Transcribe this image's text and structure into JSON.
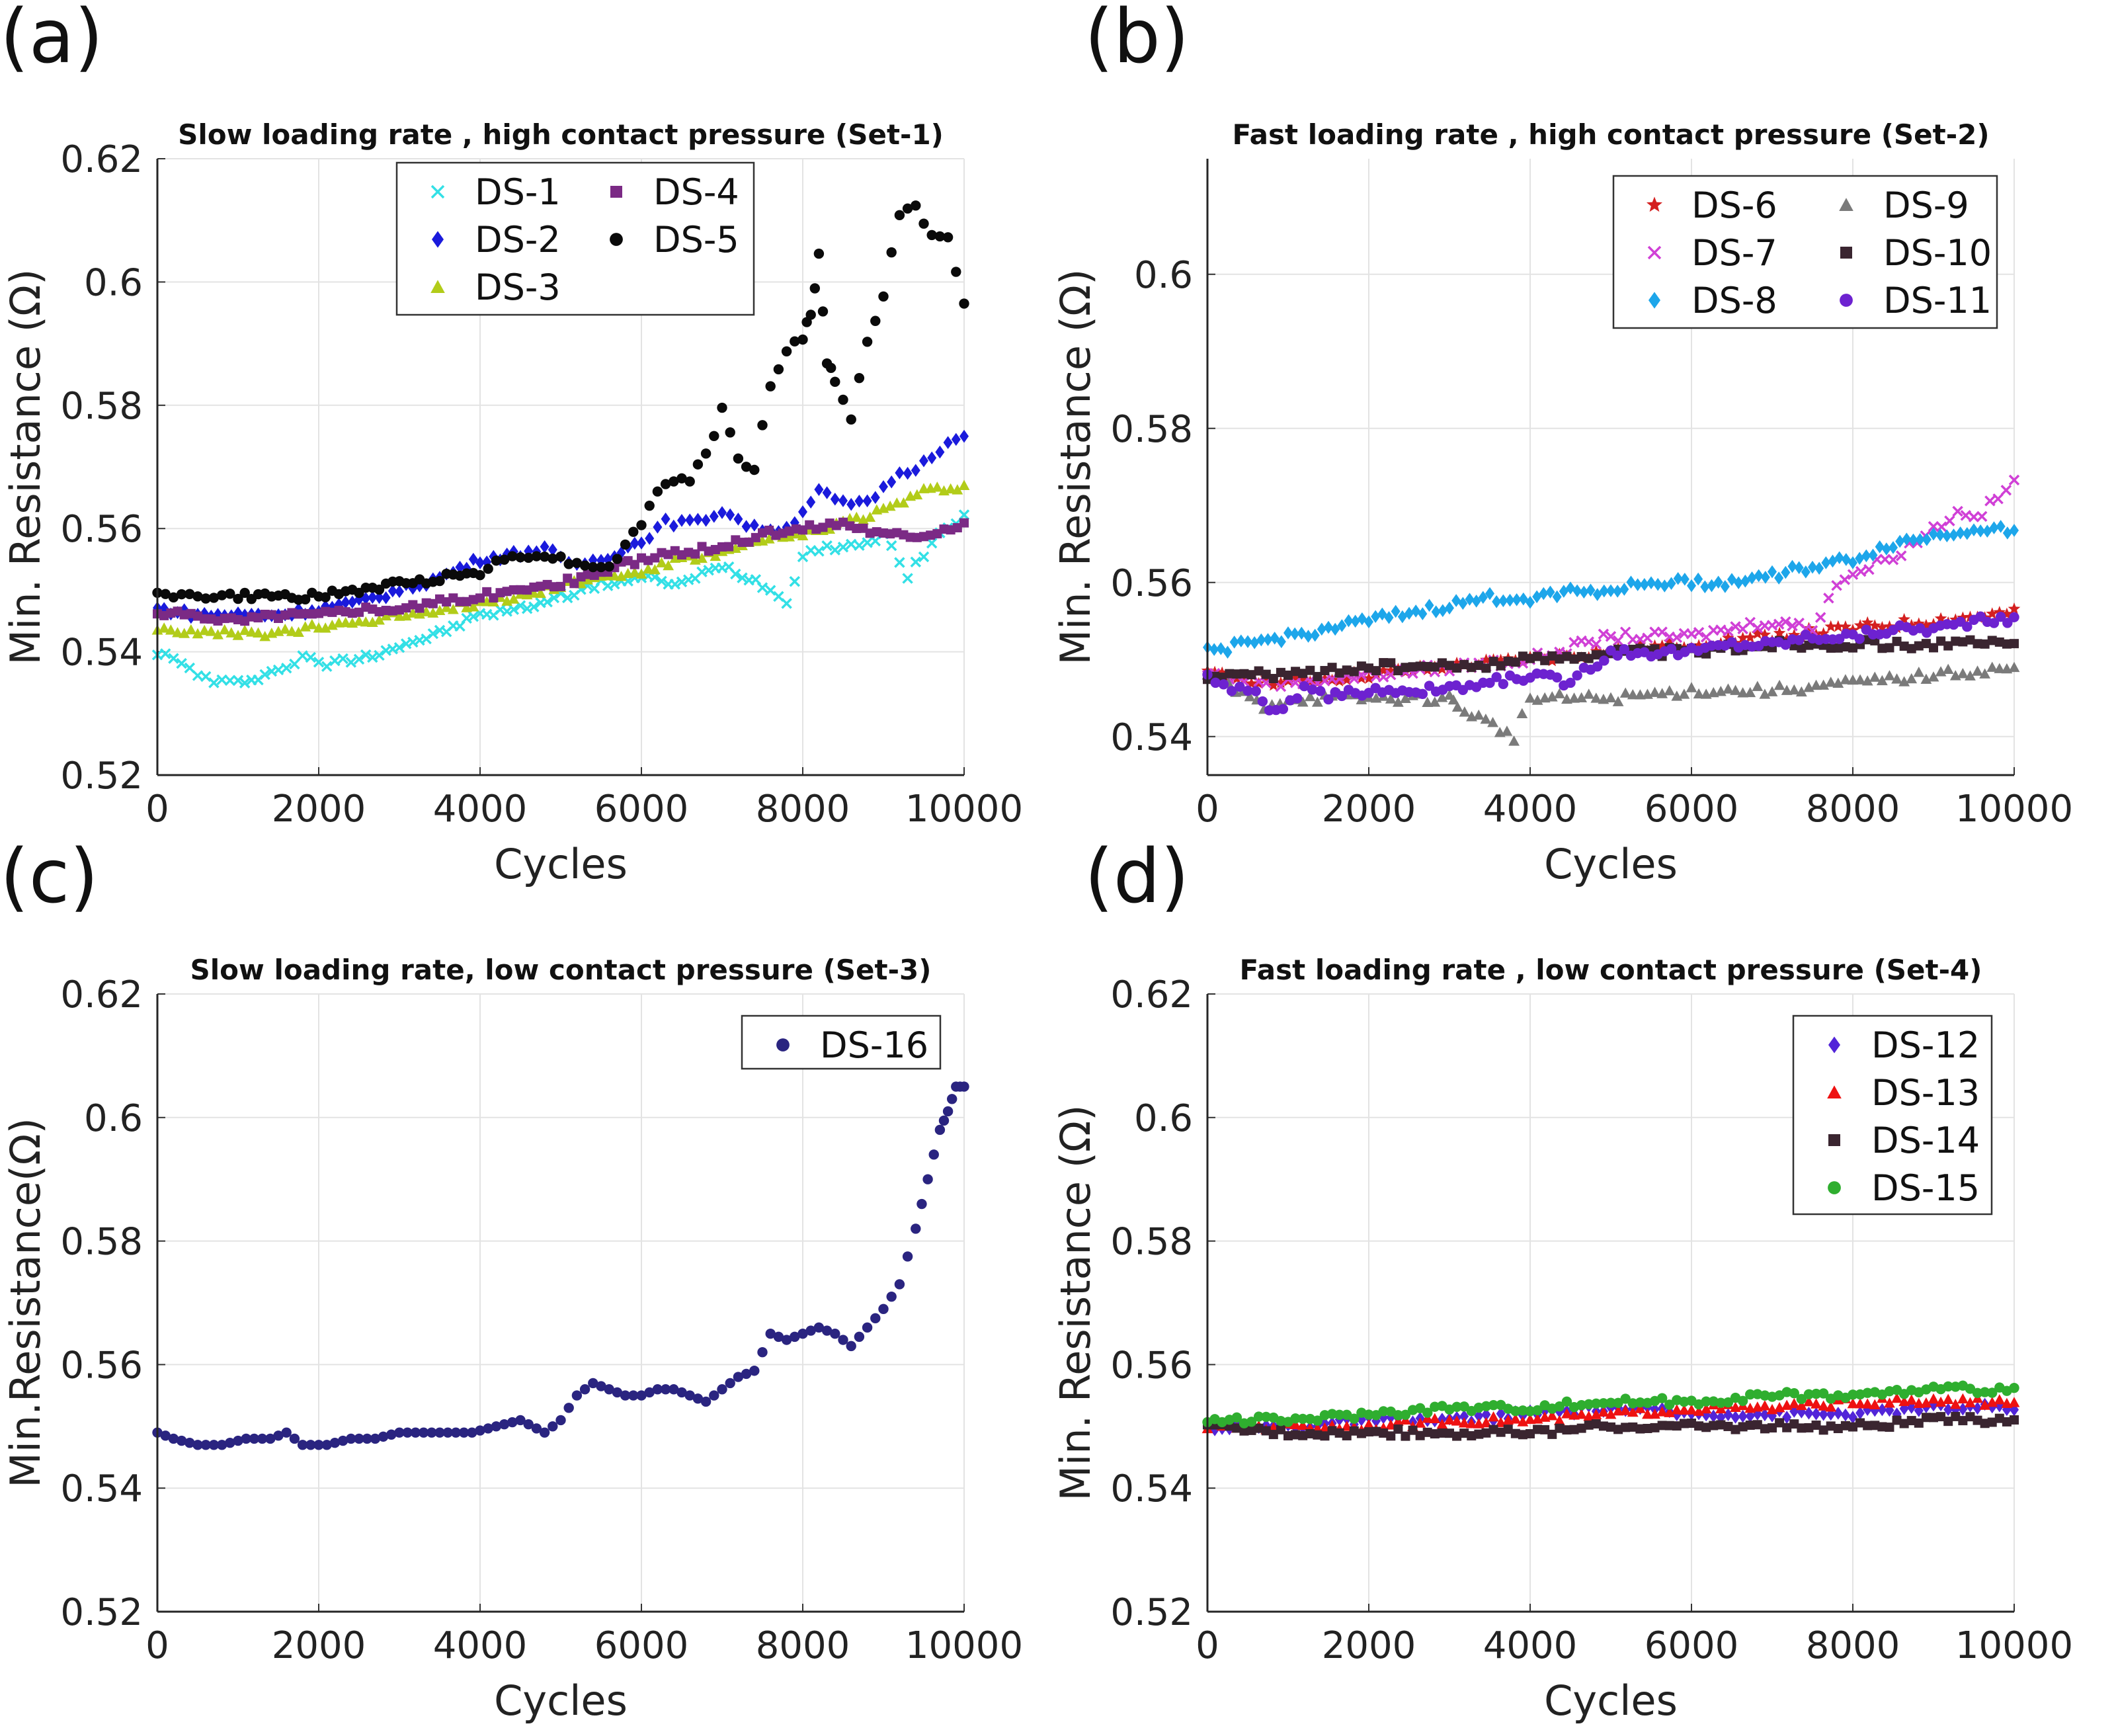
{
  "panels": [
    {
      "letter": "(a)"
    },
    {
      "letter": "(b)"
    },
    {
      "letter": "(c)"
    },
    {
      "letter": "(d)"
    }
  ],
  "chart_data": [
    {
      "id": "a",
      "type": "scatter",
      "title": "Slow loading rate , high contact pressure (Set-1)",
      "xlabel": "Cycles",
      "ylabel": "Min. Resistance (Ω)",
      "xlim": [
        0,
        10000
      ],
      "ylim": [
        0.52,
        0.62
      ],
      "xticks": [
        "0",
        "2000",
        "4000",
        "6000",
        "8000",
        "10000"
      ],
      "yticks": [
        "0.52",
        "0.54",
        "0.56",
        "0.58",
        "0.6",
        "0.62"
      ],
      "grid": true,
      "legend_columns": 2,
      "legend_placement": "top-center",
      "series": [
        {
          "name": "DS-1",
          "color": "#33e0e6",
          "marker": "x",
          "x": [
            0,
            300,
            700,
            1000,
            1500,
            1800,
            2100,
            2500,
            3000,
            3500,
            4000,
            4500,
            5000,
            5500,
            6000,
            6500,
            7000,
            7500,
            7800,
            8000,
            8300,
            8600,
            9000,
            9300,
            9600,
            10000
          ],
          "y": [
            0.54,
            0.538,
            0.535,
            0.535,
            0.537,
            0.539,
            0.538,
            0.539,
            0.541,
            0.543,
            0.546,
            0.547,
            0.549,
            0.551,
            0.552,
            0.551,
            0.554,
            0.551,
            0.548,
            0.556,
            0.557,
            0.557,
            0.559,
            0.552,
            0.558,
            0.562
          ]
        },
        {
          "name": "DS-2",
          "color": "#1a1adc",
          "marker": "diamond",
          "x": [
            0,
            500,
            1000,
            1500,
            2000,
            2500,
            3000,
            3500,
            4000,
            4500,
            4800,
            5100,
            5500,
            6000,
            6300,
            6700,
            7000,
            7400,
            7800,
            8200,
            8500,
            8800,
            9100,
            9400,
            9700,
            10000
          ],
          "y": [
            0.547,
            0.546,
            0.546,
            0.546,
            0.547,
            0.548,
            0.55,
            0.552,
            0.555,
            0.556,
            0.557,
            0.554,
            0.555,
            0.558,
            0.561,
            0.561,
            0.563,
            0.56,
            0.56,
            0.566,
            0.564,
            0.564,
            0.568,
            0.57,
            0.573,
            0.575
          ]
        },
        {
          "name": "DS-3",
          "color": "#b2cc19",
          "marker": "triangle",
          "x": [
            0,
            500,
            1000,
            1500,
            2000,
            2500,
            3000,
            3500,
            4000,
            4500,
            5000,
            5500,
            6000,
            6500,
            7000,
            7500,
            8000,
            8500,
            9000,
            9500,
            10000
          ],
          "y": [
            0.544,
            0.543,
            0.543,
            0.543,
            0.544,
            0.545,
            0.546,
            0.547,
            0.548,
            0.549,
            0.551,
            0.552,
            0.553,
            0.555,
            0.556,
            0.558,
            0.559,
            0.561,
            0.563,
            0.566,
            0.567
          ]
        },
        {
          "name": "DS-4",
          "color": "#7b2a85",
          "marker": "square",
          "x": [
            0,
            500,
            1000,
            1500,
            2000,
            2500,
            3000,
            3500,
            4000,
            4500,
            5000,
            5500,
            6000,
            6500,
            7000,
            7500,
            8000,
            8500,
            9000,
            9500,
            10000
          ],
          "y": [
            0.546,
            0.546,
            0.545,
            0.546,
            0.546,
            0.547,
            0.547,
            0.548,
            0.549,
            0.55,
            0.551,
            0.553,
            0.555,
            0.556,
            0.557,
            0.559,
            0.56,
            0.561,
            0.559,
            0.559,
            0.561
          ]
        },
        {
          "name": "DS-5",
          "color": "#0a0a0a",
          "marker": "circle",
          "x": [
            0,
            300,
            700,
            1000,
            1500,
            2000,
            2500,
            3000,
            3500,
            4000,
            4300,
            4700,
            5000,
            5300,
            5600,
            5800,
            6000,
            6200,
            6400,
            6600,
            6800,
            7000,
            7200,
            7400,
            7600,
            7800,
            8000,
            8100,
            8200,
            8300,
            8400,
            8600,
            8800,
            9000,
            9200,
            9400,
            9600,
            9800,
            10000
          ],
          "y": [
            0.55,
            0.549,
            0.549,
            0.549,
            0.549,
            0.549,
            0.55,
            0.551,
            0.552,
            0.553,
            0.555,
            0.556,
            0.555,
            0.554,
            0.554,
            0.557,
            0.561,
            0.566,
            0.568,
            0.568,
            0.572,
            0.579,
            0.571,
            0.57,
            0.583,
            0.589,
            0.591,
            0.595,
            0.604,
            0.587,
            0.584,
            0.578,
            0.59,
            0.598,
            0.611,
            0.612,
            0.608,
            0.607,
            0.596
          ]
        }
      ]
    },
    {
      "id": "b",
      "type": "scatter",
      "title": "Fast loading rate , high contact pressure (Set-2)",
      "xlabel": "Cycles",
      "ylabel": "Min. Resistance (Ω)",
      "xlim": [
        0,
        10000
      ],
      "ylim": [
        0.535,
        0.615
      ],
      "xticks": [
        "0",
        "2000",
        "4000",
        "6000",
        "8000",
        "10000"
      ],
      "yticks": [
        "0.54",
        "0.56",
        "0.58",
        "0.6"
      ],
      "grid": true,
      "legend_columns": 2,
      "legend_placement": "top-right",
      "series": [
        {
          "name": "DS-6",
          "color": "#d42020",
          "marker": "star",
          "x": [
            0,
            1000,
            2000,
            3000,
            4000,
            5000,
            6000,
            7000,
            8000,
            9000,
            10000
          ],
          "y": [
            0.548,
            0.547,
            0.548,
            0.549,
            0.55,
            0.551,
            0.552,
            0.553,
            0.554,
            0.555,
            0.556
          ]
        },
        {
          "name": "DS-7",
          "color": "#d040d6",
          "marker": "x",
          "x": [
            0,
            1000,
            2000,
            3000,
            4000,
            5000,
            6000,
            7000,
            7500,
            7800,
            8200,
            8600,
            9000,
            9300,
            9600,
            10000
          ],
          "y": [
            0.548,
            0.547,
            0.548,
            0.549,
            0.55,
            0.553,
            0.553,
            0.555,
            0.554,
            0.56,
            0.562,
            0.564,
            0.567,
            0.569,
            0.569,
            0.573
          ]
        },
        {
          "name": "DS-8",
          "color": "#1da6ea",
          "marker": "diamond",
          "x": [
            0,
            500,
            1000,
            1500,
            2000,
            2500,
            3000,
            3500,
            4000,
            4500,
            5000,
            5500,
            6000,
            6500,
            7000,
            7500,
            8000,
            8500,
            9000,
            9500,
            10000
          ],
          "y": [
            0.551,
            0.552,
            0.553,
            0.554,
            0.555,
            0.556,
            0.557,
            0.558,
            0.558,
            0.559,
            0.559,
            0.56,
            0.56,
            0.56,
            0.561,
            0.562,
            0.563,
            0.565,
            0.566,
            0.567,
            0.567
          ]
        },
        {
          "name": "DS-9",
          "color": "#7a7a7a",
          "marker": "triangle",
          "x": [
            0,
            700,
            1000,
            2000,
            3000,
            3100,
            3800,
            4000,
            5000,
            6000,
            7000,
            8000,
            9000,
            10000
          ],
          "y": [
            0.548,
            0.544,
            0.545,
            0.545,
            0.545,
            0.544,
            0.54,
            0.545,
            0.545,
            0.546,
            0.546,
            0.547,
            0.548,
            0.549
          ]
        },
        {
          "name": "DS-10",
          "color": "#3a2530",
          "marker": "square",
          "x": [
            0,
            1000,
            2000,
            3000,
            4000,
            5000,
            6000,
            7000,
            8000,
            9000,
            10000
          ],
          "y": [
            0.548,
            0.548,
            0.549,
            0.549,
            0.55,
            0.551,
            0.551,
            0.552,
            0.552,
            0.552,
            0.552
          ]
        },
        {
          "name": "DS-11",
          "color": "#6d22d0",
          "marker": "circle",
          "x": [
            0,
            300,
            600,
            850,
            1200,
            1500,
            2000,
            2500,
            3000,
            3500,
            4000,
            4500,
            5000,
            5500,
            6000,
            6500,
            7000,
            7500,
            8000,
            8500,
            9000,
            9500,
            10000
          ],
          "y": [
            0.548,
            0.546,
            0.546,
            0.543,
            0.546,
            0.545,
            0.546,
            0.546,
            0.546,
            0.547,
            0.548,
            0.547,
            0.551,
            0.551,
            0.551,
            0.552,
            0.552,
            0.553,
            0.553,
            0.554,
            0.554,
            0.555,
            0.555
          ]
        }
      ]
    },
    {
      "id": "c",
      "type": "scatter",
      "title": "Slow loading rate, low contact pressure (Set-3)",
      "xlabel": "Cycles",
      "ylabel": "Min.Resistance(Ω)",
      "xlim": [
        0,
        10000
      ],
      "ylim": [
        0.52,
        0.62
      ],
      "xticks": [
        "0",
        "2000",
        "4000",
        "6000",
        "8000",
        "10000"
      ],
      "yticks": [
        "0.52",
        "0.54",
        "0.56",
        "0.58",
        "0.6",
        "0.62"
      ],
      "grid": true,
      "legend_columns": 1,
      "legend_placement": "top-right",
      "series": [
        {
          "name": "DS-16",
          "color": "#2a2480",
          "marker": "circle",
          "x": [
            0,
            200,
            500,
            800,
            1100,
            1400,
            1600,
            1800,
            2100,
            2400,
            2700,
            3000,
            3300,
            3600,
            3900,
            4200,
            4500,
            4800,
            5000,
            5200,
            5400,
            5600,
            5800,
            6000,
            6200,
            6400,
            6600,
            6800,
            7000,
            7200,
            7400,
            7600,
            7800,
            8000,
            8200,
            8400,
            8600,
            8800,
            9000,
            9200,
            9400,
            9550,
            9700,
            9800,
            9900,
            10000
          ],
          "y": [
            0.549,
            0.548,
            0.547,
            0.547,
            0.548,
            0.548,
            0.549,
            0.547,
            0.547,
            0.548,
            0.548,
            0.549,
            0.549,
            0.549,
            0.549,
            0.55,
            0.551,
            0.549,
            0.551,
            0.555,
            0.557,
            0.556,
            0.555,
            0.555,
            0.556,
            0.556,
            0.555,
            0.554,
            0.556,
            0.558,
            0.559,
            0.565,
            0.564,
            0.565,
            0.566,
            0.565,
            0.563,
            0.566,
            0.569,
            0.573,
            0.582,
            0.59,
            0.598,
            0.601,
            0.605,
            0.605
          ]
        }
      ]
    },
    {
      "id": "d",
      "type": "scatter",
      "title": "Fast loading rate , low contact pressure (Set-4)",
      "xlabel": "Cycles",
      "ylabel": "Min. Resistance (Ω)",
      "xlim": [
        0,
        10000
      ],
      "ylim": [
        0.52,
        0.62
      ],
      "xticks": [
        "0",
        "2000",
        "4000",
        "6000",
        "8000",
        "10000"
      ],
      "yticks": [
        "0.52",
        "0.54",
        "0.56",
        "0.58",
        "0.6",
        "0.62"
      ],
      "grid": true,
      "legend_columns": 1,
      "legend_placement": "top-right",
      "series": [
        {
          "name": "DS-12",
          "color": "#5225d8",
          "marker": "diamond",
          "x": [
            0,
            1000,
            2000,
            3000,
            4000,
            5000,
            6000,
            7000,
            8000,
            9000,
            10000
          ],
          "y": [
            0.55,
            0.55,
            0.551,
            0.551,
            0.552,
            0.553,
            0.552,
            0.552,
            0.552,
            0.553,
            0.553
          ]
        },
        {
          "name": "DS-13",
          "color": "#ee1111",
          "marker": "triangle",
          "x": [
            0,
            1000,
            2000,
            3000,
            4000,
            5000,
            6000,
            7000,
            8000,
            9000,
            10000
          ],
          "y": [
            0.55,
            0.55,
            0.55,
            0.551,
            0.551,
            0.552,
            0.553,
            0.553,
            0.554,
            0.554,
            0.554
          ]
        },
        {
          "name": "DS-14",
          "color": "#3a2530",
          "marker": "square",
          "x": [
            0,
            1000,
            2000,
            3000,
            4000,
            5000,
            6000,
            7000,
            8000,
            9000,
            10000
          ],
          "y": [
            0.55,
            0.549,
            0.549,
            0.549,
            0.549,
            0.55,
            0.55,
            0.55,
            0.55,
            0.551,
            0.551
          ]
        },
        {
          "name": "DS-15",
          "color": "#2fae2f",
          "marker": "circle",
          "x": [
            0,
            1000,
            2000,
            3000,
            4000,
            5000,
            6000,
            7000,
            8000,
            9000,
            10000
          ],
          "y": [
            0.551,
            0.551,
            0.552,
            0.553,
            0.553,
            0.554,
            0.554,
            0.555,
            0.555,
            0.556,
            0.556
          ]
        }
      ]
    }
  ]
}
